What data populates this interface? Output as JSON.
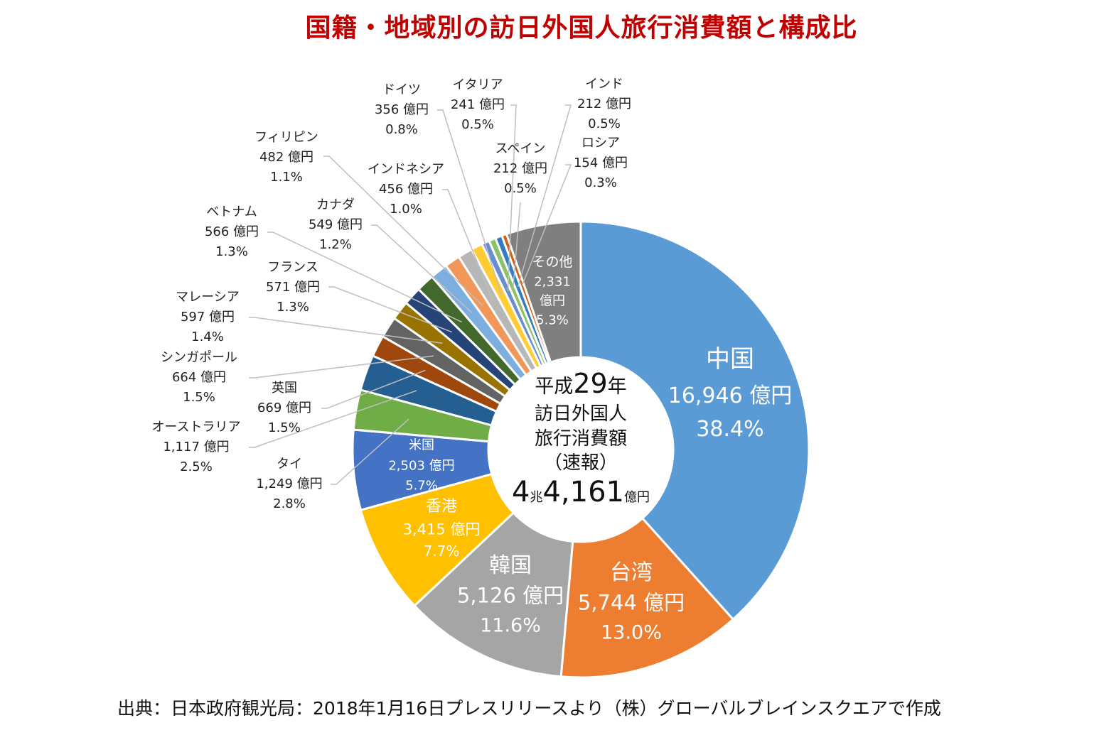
{
  "chart_data": {
    "type": "pie",
    "variant": "donut",
    "title": "国籍・地域別の訪日外国人旅行消費額と構成比",
    "unit": "億円",
    "center_label": {
      "line1_prefix": "平成",
      "line1_num": "29",
      "line1_suffix": "年",
      "line2": "訪日外国人",
      "line3": "旅行消費額",
      "line4": "（速報）",
      "total_a": "4",
      "total_b": "兆",
      "total_c": "4,161",
      "total_d": "億円"
    },
    "slices": [
      {
        "name": "中国",
        "value": 16946,
        "value_label": "16,946 億円",
        "percent": "38.4%",
        "color": "#5B9BD5"
      },
      {
        "name": "台湾",
        "value": 5744,
        "value_label": "5,744 億円",
        "percent": "13.0%",
        "color": "#ED7D31"
      },
      {
        "name": "韓国",
        "value": 5126,
        "value_label": "5,126 億円",
        "percent": "11.6%",
        "color": "#A5A5A5"
      },
      {
        "name": "香港",
        "value": 3415,
        "value_label": "3,415 億円",
        "percent": "7.7%",
        "color": "#FFC000"
      },
      {
        "name": "米国",
        "value": 2503,
        "value_label": "2,503 億円",
        "percent": "5.7%",
        "color": "#4472C4"
      },
      {
        "name": "タイ",
        "value": 1249,
        "value_label": "1,249 億円",
        "percent": "2.8%",
        "color": "#70AD47"
      },
      {
        "name": "オーストラリア",
        "value": 1117,
        "value_label": "1,117 億円",
        "percent": "2.5%",
        "color": "#255E91"
      },
      {
        "name": "英国",
        "value": 669,
        "value_label": "669 億円",
        "percent": "1.5%",
        "color": "#9E480E"
      },
      {
        "name": "シンガポール",
        "value": 664,
        "value_label": "664 億円",
        "percent": "1.5%",
        "color": "#636363"
      },
      {
        "name": "マレーシア",
        "value": 597,
        "value_label": "597 億円",
        "percent": "1.4%",
        "color": "#997300"
      },
      {
        "name": "フランス",
        "value": 571,
        "value_label": "571 億円",
        "percent": "1.3%",
        "color": "#264478"
      },
      {
        "name": "ベトナム",
        "value": 566,
        "value_label": "566 億円",
        "percent": "1.3%",
        "color": "#43682B"
      },
      {
        "name": "カナダ",
        "value": 549,
        "value_label": "549 億円",
        "percent": "1.2%",
        "color": "#7CAFDD"
      },
      {
        "name": "フィリピン",
        "value": 482,
        "value_label": "482 億円",
        "percent": "1.1%",
        "color": "#F1975A"
      },
      {
        "name": "インドネシア",
        "value": 456,
        "value_label": "456 億円",
        "percent": "1.0%",
        "color": "#B7B7B7"
      },
      {
        "name": "ドイツ",
        "value": 356,
        "value_label": "356 億円",
        "percent": "0.8%",
        "color": "#FFCD33"
      },
      {
        "name": "イタリア",
        "value": 241,
        "value_label": "241 億円",
        "percent": "0.5%",
        "color": "#698ED0"
      },
      {
        "name": "スペイン",
        "value": 212,
        "value_label": "212 億円",
        "percent": "0.5%",
        "color": "#8CC168"
      },
      {
        "name": "インド",
        "value": 212,
        "value_label": "212 億円",
        "percent": "0.5%",
        "color": "#327DC2"
      },
      {
        "name": "ロシア",
        "value": 154,
        "value_label": "154 億円",
        "percent": "0.3%",
        "color": "#D26012"
      },
      {
        "name": "その他",
        "value": 2331,
        "value_label": "2,331",
        "value_unit": "億円",
        "percent": "5.3%",
        "color": "#7F7F7F"
      }
    ]
  },
  "source": "出典：日本政府観光局：2018年1月16日プレスリリースより（株）グローバルブレインスクエアで作成"
}
